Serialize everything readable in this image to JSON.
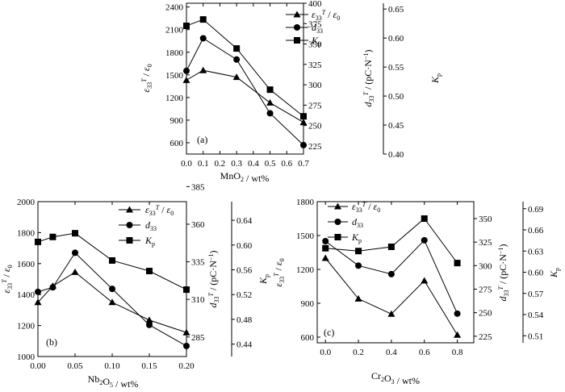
{
  "chart_data": [
    {
      "type": "line",
      "panel_label": "(a)",
      "xlabel": "MnO₂ / wt%",
      "x": [
        0.0,
        0.1,
        0.3,
        0.5,
        0.7
      ],
      "x_ticks": [
        "0.0",
        "0.1",
        "0.2",
        "0.3",
        "0.4",
        "0.5",
        "0.6",
        "0.7"
      ],
      "xlim": [
        0.0,
        0.7
      ],
      "y_axes": [
        {
          "label": "ε33T / ε0",
          "ticks": [
            "600",
            "900",
            "1200",
            "1500",
            "1800",
            "2100",
            "2400"
          ],
          "lim": [
            450,
            2450
          ]
        },
        {
          "label": "d33T / (pC·N⁻¹)",
          "ticks": [
            "225",
            "250",
            "275",
            "300",
            "325",
            "350",
            "375",
            "400"
          ],
          "lim": [
            215,
            400
          ]
        },
        {
          "label": "Kp",
          "ticks": [
            "0.40",
            "0.45",
            "0.50",
            "0.55",
            "0.60",
            "0.65"
          ],
          "lim": [
            0.4,
            0.66
          ]
        }
      ],
      "legend": [
        "ε33T / ε0",
        "d33",
        "Kp"
      ],
      "legend_position": "top-right",
      "series": [
        {
          "name": "ε33T / ε0",
          "marker": "triangle",
          "axis": 0,
          "values": [
            1430,
            1560,
            1470,
            1130,
            870
          ]
        },
        {
          "name": "d33",
          "marker": "circle",
          "axis": 1,
          "values": [
            317,
            357,
            331,
            265,
            226
          ]
        },
        {
          "name": "Kp",
          "marker": "square",
          "axis": 2,
          "values": [
            0.621,
            0.632,
            0.582,
            0.511,
            0.465
          ]
        }
      ]
    },
    {
      "type": "line",
      "panel_label": "(b)",
      "xlabel": "Nb₂O₅ / wt%",
      "x": [
        0.0,
        0.02,
        0.05,
        0.1,
        0.15,
        0.2
      ],
      "x_ticks": [
        "0.00",
        "0.05",
        "0.10",
        "0.15",
        "0.20"
      ],
      "xlim": [
        0.0,
        0.2
      ],
      "y_axes": [
        {
          "label": "ε33T / ε0",
          "ticks": [
            "1000",
            "1200",
            "1400",
            "1600",
            "1800",
            "2000"
          ],
          "lim": [
            1000,
            2000
          ]
        },
        {
          "label": "d33T / (pC·N⁻¹)",
          "ticks": [
            "285",
            "310",
            "335",
            "360",
            "385"
          ],
          "lim": [
            272,
            375
          ]
        },
        {
          "label": "Kp",
          "ticks": [
            "0.44",
            "0.48",
            "0.52",
            "0.56",
            "0.60",
            "0.64"
          ],
          "lim": [
            0.42,
            0.67
          ]
        }
      ],
      "legend": [
        "ε33T / ε0",
        "d33",
        "Kp"
      ],
      "legend_position": "top-right",
      "series": [
        {
          "name": "ε33T / ε0",
          "marker": "triangle",
          "axis": 0,
          "values": [
            1350,
            1455,
            1545,
            1350,
            1235,
            1155
          ]
        },
        {
          "name": "d33",
          "marker": "circle",
          "axis": 1,
          "values": [
            315,
            318,
            341,
            317,
            293,
            279
          ]
        },
        {
          "name": "Kp",
          "marker": "square",
          "axis": 2,
          "values": [
            0.605,
            0.613,
            0.619,
            0.575,
            0.558,
            0.528
          ]
        }
      ]
    },
    {
      "type": "line",
      "panel_label": "(c)",
      "xlabel": "Cr₂O₃ / wt%",
      "x": [
        0.0,
        0.2,
        0.4,
        0.6,
        0.8
      ],
      "x_ticks": [
        "0.0",
        "0.2",
        "0.4",
        "0.6",
        "0.8"
      ],
      "xlim": [
        -0.05,
        0.9
      ],
      "y_axes": [
        {
          "label": "ε33T / ε0",
          "ticks": [
            "600",
            "900",
            "1200",
            "1500",
            "1800"
          ],
          "lim": [
            550,
            1800
          ]
        },
        {
          "label": "d33T / (pC·N⁻¹)",
          "ticks": [
            "225",
            "250",
            "275",
            "300",
            "325",
            "350"
          ],
          "lim": [
            218,
            368
          ]
        },
        {
          "label": "Kp",
          "ticks": [
            "0.51",
            "0.54",
            "0.57",
            "0.60",
            "0.63",
            "0.66",
            "0.69"
          ],
          "lim": [
            0.5,
            0.7
          ]
        }
      ],
      "legend": [
        "ε33T / ε0",
        "d33",
        "Kp"
      ],
      "legend_position": "top-right",
      "series": [
        {
          "name": "ε33T / ε0",
          "marker": "triangle",
          "axis": 0,
          "values": [
            1300,
            940,
            805,
            1100,
            620
          ]
        },
        {
          "name": "d33",
          "marker": "circle",
          "axis": 1,
          "values": [
            326,
            300,
            291,
            327,
            249
          ]
        },
        {
          "name": "Kp",
          "marker": "square",
          "axis": 2,
          "values": [
            0.634,
            0.63,
            0.636,
            0.676,
            0.613
          ]
        }
      ]
    }
  ]
}
